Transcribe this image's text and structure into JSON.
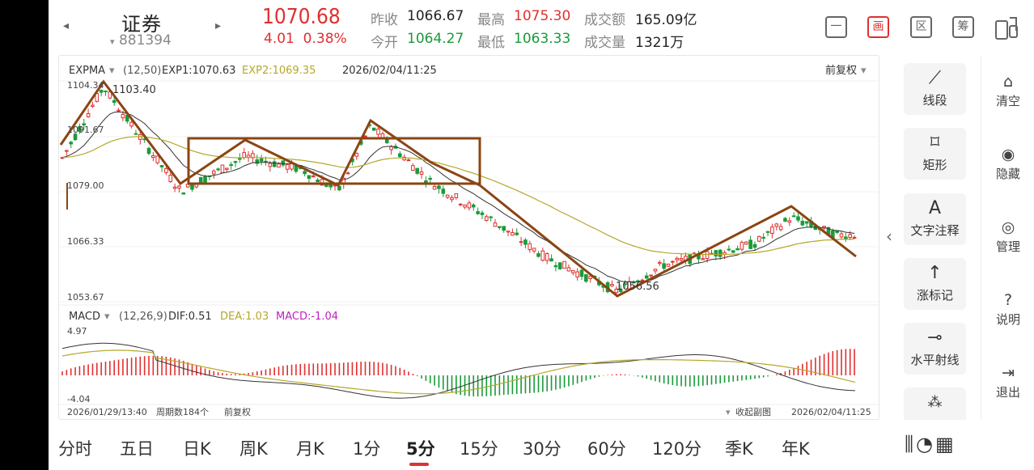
{
  "header": {
    "stock_name": "证券",
    "stock_code": "881394",
    "price": "1070.68",
    "change": "4.01",
    "change_pct": "0.38%",
    "prev_close_label": "昨收",
    "prev_close": "1066.67",
    "open_label": "今开",
    "open": "1064.27",
    "high_label": "最高",
    "high": "1075.30",
    "low_label": "最低",
    "low": "1063.33",
    "amount_label": "成交额",
    "amount": "165.09亿",
    "volume_label": "成交量",
    "volume": "1321万",
    "icon_min": "一",
    "icon_draw": "画",
    "icon_zone": "区",
    "icon_chip": "筹"
  },
  "main_chart": {
    "indicator": "EXPMA",
    "params": "(12,50)",
    "exp1": "EXP1:1070.63",
    "exp2": "EXP2:1069.35",
    "datetime": "2026/02/04/11:25",
    "adjust": "前复权",
    "y_labels": [
      "1104.34",
      "1091.67",
      "1079.00",
      "1066.33",
      "1053.67"
    ],
    "high_mark": "1103.40",
    "low_mark": "1056.56",
    "price_range": [
      1053.67,
      1104.34
    ],
    "colors": {
      "up": "#e03030",
      "down": "#1a9a3a",
      "exp1": "#333333",
      "exp2": "#b5a72a",
      "drawing": "#8b4513"
    }
  },
  "sub_chart": {
    "indicator": "MACD",
    "params": "(12,26,9)",
    "dif": "DIF:0.51",
    "dea": "DEA:1.03",
    "macd": "MACD:-1.04",
    "y_top": "4.97",
    "y_bottom": "-4.04",
    "start_time": "2026/01/29/13:40",
    "period_count": "周期数184个",
    "adjust": "前复权",
    "collapse": "收起副图",
    "end_time": "2026/02/04/11:25",
    "colors": {
      "dif": "#333333",
      "dea": "#b5a72a",
      "macd": "#c020c0"
    }
  },
  "tools": [
    {
      "icon": "line-segment-icon",
      "glyph": "⟋",
      "label": "线段"
    },
    {
      "icon": "rectangle-icon",
      "glyph": "⌑",
      "label": "矩形"
    },
    {
      "icon": "text-icon",
      "glyph": "A",
      "label": "文字注释"
    },
    {
      "icon": "up-arrow-icon",
      "glyph": "↑",
      "label": "涨标记"
    },
    {
      "icon": "horizontal-ray-icon",
      "glyph": "⊸",
      "label": "水平射线"
    }
  ],
  "side_buttons": [
    {
      "icon": "clear-icon",
      "glyph": "⌂",
      "label": "清空"
    },
    {
      "icon": "eye-icon",
      "glyph": "◉",
      "label": "隐藏"
    },
    {
      "icon": "manage-icon",
      "glyph": "◎",
      "label": "管理"
    },
    {
      "icon": "help-icon",
      "glyph": "?",
      "label": "说明"
    },
    {
      "icon": "exit-icon",
      "glyph": "⇥",
      "label": "退出"
    }
  ],
  "periods": [
    "分时",
    "五日",
    "日K",
    "周K",
    "月K",
    "1分",
    "5分",
    "15分",
    "30分",
    "60分",
    "120分",
    "季K",
    "年K"
  ],
  "active_period": "5分"
}
